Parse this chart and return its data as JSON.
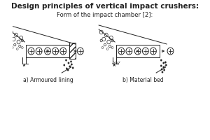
{
  "title": "Design principles of vertical impact crushers:",
  "subtitle": "Form of the impact chamber [2]:",
  "label_a": "a) Armoured lining",
  "label_b": "b) Material bed",
  "line_color": "#222222"
}
